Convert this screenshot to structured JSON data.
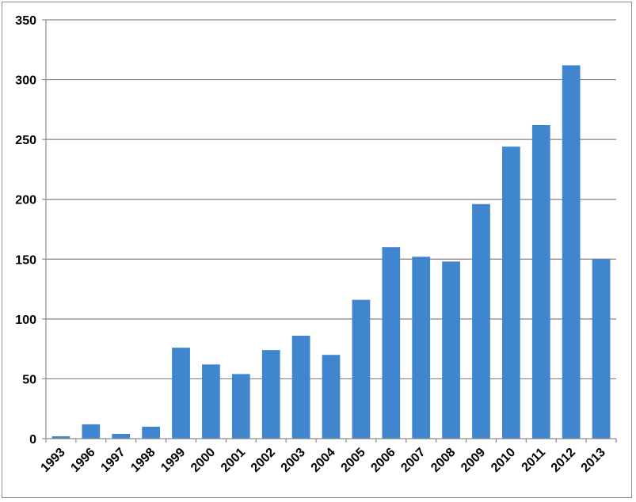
{
  "chart_data": {
    "type": "bar",
    "title": "",
    "xlabel": "",
    "ylabel": "",
    "categories": [
      "1993",
      "1996",
      "1997",
      "1998",
      "1999",
      "2000",
      "2001",
      "2002",
      "2003",
      "2004",
      "2005",
      "2006",
      "2007",
      "2008",
      "2009",
      "2010",
      "2011",
      "2012",
      "2013"
    ],
    "values": [
      2,
      12,
      4,
      10,
      76,
      62,
      54,
      74,
      86,
      70,
      116,
      160,
      152,
      148,
      196,
      244,
      262,
      312,
      150
    ],
    "ylim": [
      0,
      350
    ],
    "yticks": [
      0,
      50,
      100,
      150,
      200,
      250,
      300,
      350
    ],
    "grid": true,
    "legend": "none",
    "colors": {
      "bar": "#3f86cf",
      "grid": "#8f7f7f",
      "axis": "#8c8c8c"
    }
  }
}
